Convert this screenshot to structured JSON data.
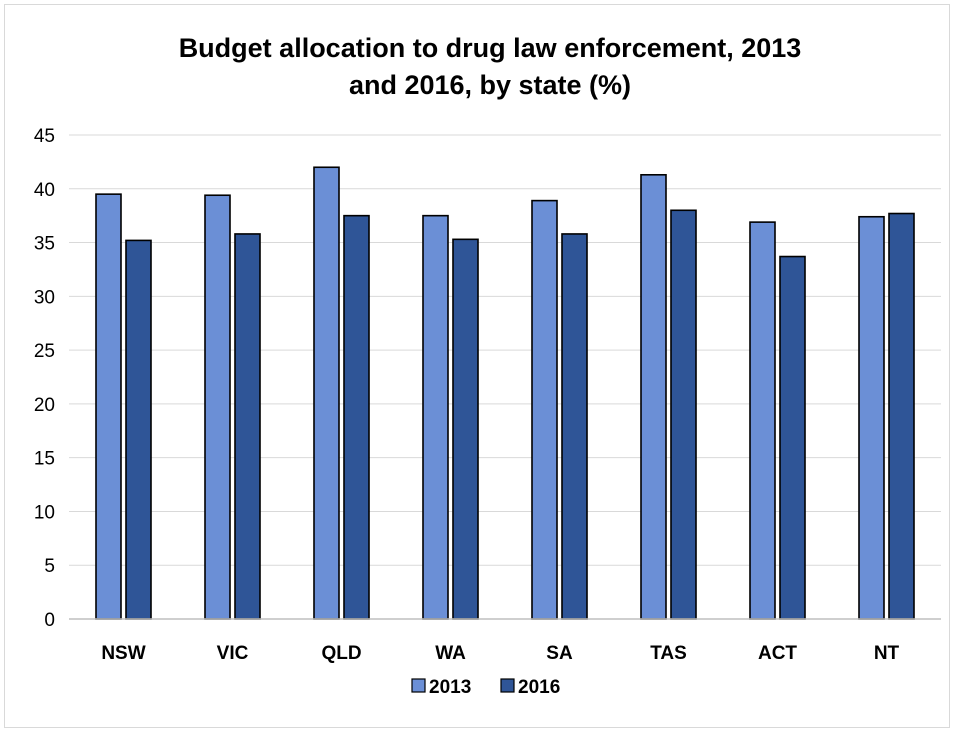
{
  "chart_data": {
    "type": "bar",
    "title_line1": "Budget allocation to drug law enforcement, 2013",
    "title_line2": "and 2016, by state (%)",
    "categories": [
      "NSW",
      "VIC",
      "QLD",
      "WA",
      "SA",
      "TAS",
      "ACT",
      "NT"
    ],
    "series": [
      {
        "name": "2013",
        "color": "#6b8fd6",
        "values": [
          39.5,
          39.4,
          42.0,
          37.5,
          38.9,
          41.3,
          36.9,
          37.4
        ]
      },
      {
        "name": "2016",
        "color": "#2f5597",
        "values": [
          35.2,
          35.8,
          37.5,
          35.3,
          35.8,
          38.0,
          33.7,
          37.7
        ]
      }
    ],
    "ylim": [
      0,
      45
    ],
    "yticks": [
      0,
      5,
      10,
      15,
      20,
      25,
      30,
      35,
      40,
      45
    ],
    "grid": true,
    "legend_position": "bottom",
    "xlabel": "",
    "ylabel": ""
  }
}
